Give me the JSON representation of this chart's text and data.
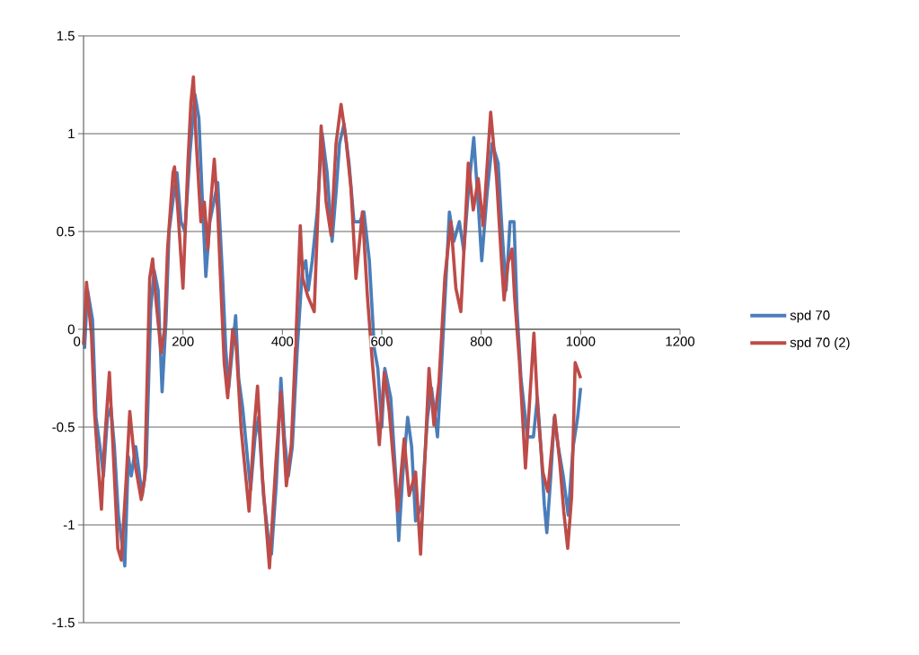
{
  "chart_data": {
    "type": "line",
    "xlim": [
      0,
      1200
    ],
    "xticks": [
      0,
      200,
      400,
      600,
      800,
      1000,
      1200
    ],
    "ylim": [
      -1.5,
      1.5
    ],
    "yticks": [
      -1.5,
      -1,
      -0.5,
      0,
      0.5,
      1,
      1.5
    ],
    "grid": "y",
    "legend": "right",
    "series": [
      {
        "name": "spd 70",
        "color": "#4a7ebb",
        "x": [
          2,
          8,
          18,
          25,
          33,
          40,
          48,
          55,
          62,
          70,
          83,
          90,
          96,
          105,
          118,
          126,
          135,
          142,
          150,
          158,
          166,
          172,
          182,
          188,
          196,
          204,
          214,
          224,
          232,
          240,
          246,
          254,
          262,
          270,
          280,
          286,
          292,
          306,
          312,
          320,
          336,
          345,
          352,
          362,
          371,
          378,
          388,
          397,
          404,
          412,
          420,
          430,
          440,
          447,
          452,
          460,
          470,
          480,
          490,
          500,
          508,
          515,
          524,
          534,
          544,
          556,
          564,
          575,
          585,
          592,
          600,
          606,
          618,
          628,
          634,
          642,
          652,
          660,
          668,
          680,
          692,
          700,
          712,
          722,
          736,
          745,
          756,
          765,
          774,
          785,
          795,
          801,
          812,
          822,
          834,
          842,
          850,
          858,
          866,
          872,
          880,
          893,
          905,
          913,
          920,
          927,
          932,
          940,
          947,
          955,
          965,
          975,
          985,
          994,
          1000
        ],
        "values": [
          -0.1,
          0.2,
          0.05,
          -0.45,
          -0.6,
          -0.75,
          -0.45,
          -0.4,
          -0.6,
          -0.95,
          -1.21,
          -0.65,
          -0.75,
          -0.6,
          -0.85,
          -0.7,
          0.1,
          0.3,
          0.2,
          -0.32,
          0.05,
          0.5,
          0.7,
          0.8,
          0.55,
          0.5,
          0.9,
          1.2,
          1.08,
          0.6,
          0.27,
          0.55,
          0.65,
          0.75,
          0.25,
          -0.1,
          -0.3,
          0.07,
          -0.25,
          -0.4,
          -0.82,
          -0.55,
          -0.45,
          -0.85,
          -1.05,
          -1.15,
          -0.78,
          -0.25,
          -0.55,
          -0.75,
          -0.6,
          -0.1,
          0.3,
          0.35,
          0.2,
          0.35,
          0.6,
          1.0,
          0.8,
          0.45,
          0.7,
          0.95,
          1.05,
          0.85,
          0.55,
          0.55,
          0.6,
          0.35,
          -0.1,
          -0.2,
          -0.5,
          -0.2,
          -0.35,
          -0.75,
          -1.08,
          -0.75,
          -0.45,
          -0.6,
          -0.98,
          -0.9,
          -0.45,
          -0.3,
          -0.55,
          -0.1,
          0.6,
          0.45,
          0.55,
          0.4,
          0.7,
          0.98,
          0.6,
          0.35,
          0.7,
          0.95,
          0.85,
          0.5,
          0.2,
          0.55,
          0.55,
          0.1,
          -0.25,
          -0.55,
          -0.55,
          -0.35,
          -0.6,
          -0.9,
          -1.04,
          -0.75,
          -0.45,
          -0.6,
          -0.75,
          -0.95,
          -0.6,
          -0.45,
          -0.3
        ]
      },
      {
        "name": "spd 70 (2)",
        "color": "#be4b48",
        "x": [
          0,
          6,
          16,
          22,
          29,
          36,
          42,
          52,
          59,
          69,
          76,
          86,
          93,
          103,
          116,
          123,
          133,
          139,
          146,
          156,
          163,
          169,
          180,
          183,
          190,
          200,
          210,
          216,
          221,
          226,
          236,
          243,
          250,
          256,
          263,
          270,
          277,
          283,
          290,
          300,
          307,
          317,
          333,
          343,
          350,
          360,
          374,
          387,
          397,
          408,
          418,
          428,
          436,
          441,
          451,
          464,
          478,
          488,
          498,
          508,
          518,
          528,
          538,
          548,
          561,
          571,
          581,
          595,
          605,
          615,
          632,
          645,
          655,
          668,
          678,
          688,
          695,
          705,
          715,
          727,
          739,
          749,
          759,
          774,
          784,
          794,
          804,
          819,
          831,
          841,
          846,
          854,
          862,
          867,
          877,
          889,
          898,
          906,
          914,
          924,
          934,
          948,
          958,
          966,
          974,
          982,
          989,
          996,
          1000
        ],
        "values": [
          -0.08,
          0.24,
          -0.03,
          -0.42,
          -0.68,
          -0.92,
          -0.59,
          -0.22,
          -0.59,
          -1.12,
          -1.18,
          -0.76,
          -0.42,
          -0.68,
          -0.87,
          -0.76,
          0.26,
          0.36,
          0.14,
          -0.12,
          0.0,
          0.41,
          0.8,
          0.83,
          0.6,
          0.21,
          0.85,
          1.16,
          1.29,
          0.99,
          0.55,
          0.65,
          0.41,
          0.65,
          0.87,
          0.6,
          0.17,
          -0.17,
          -0.35,
          0.0,
          -0.08,
          -0.51,
          -0.93,
          -0.51,
          -0.29,
          -0.76,
          -1.22,
          -0.68,
          -0.32,
          -0.8,
          -0.59,
          0.0,
          0.53,
          0.26,
          0.17,
          0.09,
          1.04,
          0.65,
          0.48,
          0.95,
          1.15,
          0.97,
          0.72,
          0.26,
          0.6,
          0.17,
          -0.17,
          -0.59,
          -0.22,
          -0.42,
          -0.93,
          -0.56,
          -0.85,
          -0.73,
          -1.15,
          -0.59,
          -0.2,
          -0.49,
          -0.27,
          0.27,
          0.55,
          0.21,
          0.09,
          0.85,
          0.61,
          0.77,
          0.53,
          1.11,
          0.77,
          0.34,
          0.15,
          0.34,
          0.41,
          0.17,
          -0.17,
          -0.71,
          -0.34,
          -0.02,
          -0.42,
          -0.73,
          -0.83,
          -0.44,
          -0.68,
          -0.93,
          -1.12,
          -0.85,
          -0.17,
          -0.22,
          -0.25
        ]
      }
    ]
  }
}
